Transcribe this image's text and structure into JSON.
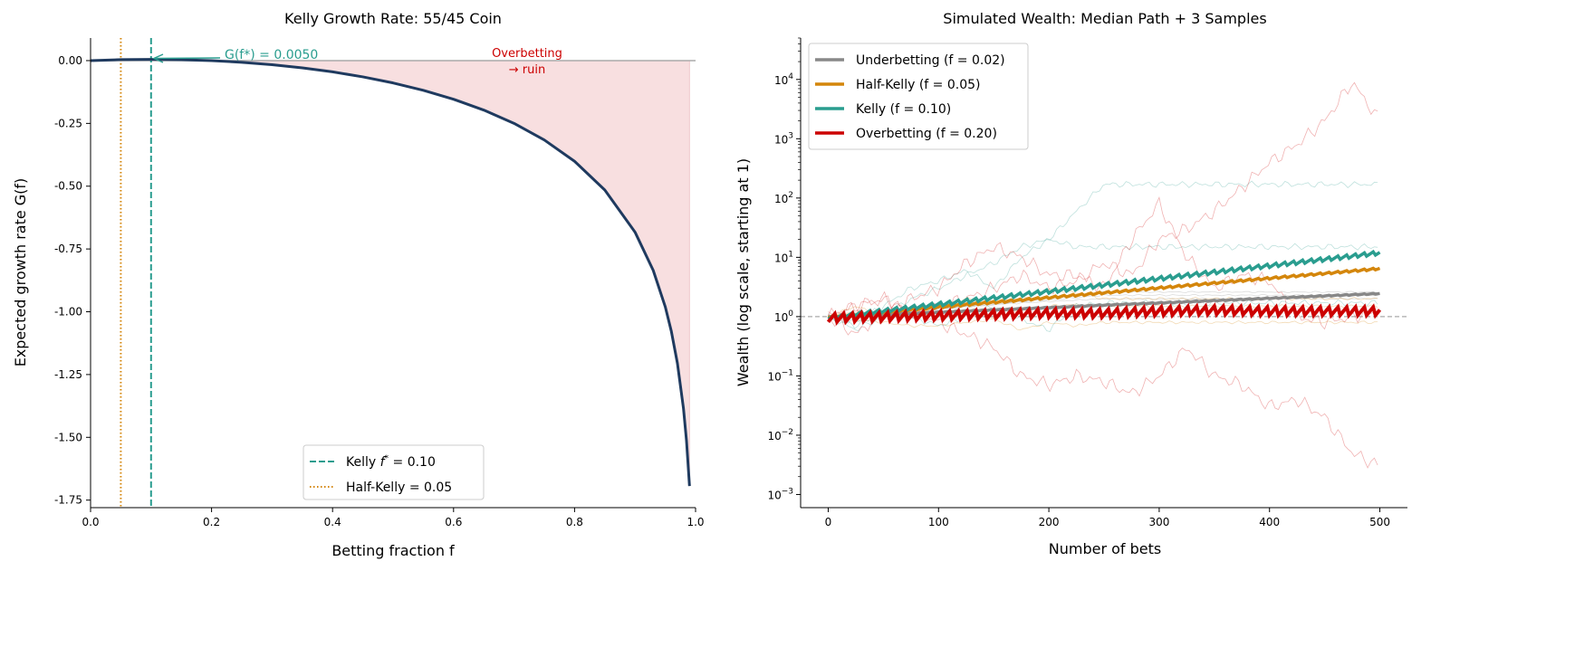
{
  "chart_data": [
    {
      "type": "line",
      "title": "Kelly Growth Rate: 55/45 Coin",
      "xlabel": "Betting fraction f",
      "ylabel": "Expected growth rate G(f)",
      "xlim": [
        0,
        1.0
      ],
      "ylim": [
        -1.78,
        0.09
      ],
      "xticks": [
        "0.0",
        "0.2",
        "0.4",
        "0.6",
        "0.8",
        "1.0"
      ],
      "xtick_values": [
        0,
        0.2,
        0.4,
        0.6,
        0.8,
        1.0
      ],
      "yticks": [
        "0.00",
        "-0.25",
        "-0.50",
        "-0.75",
        "-1.00",
        "-1.25",
        "-1.50",
        "-1.75"
      ],
      "ytick_values": [
        0,
        -0.25,
        -0.5,
        -0.75,
        -1.0,
        -1.25,
        -1.5,
        -1.75
      ],
      "grid": false,
      "curve": {
        "color": "#1f3a5f",
        "x": [
          0,
          0.05,
          0.1,
          0.15,
          0.2,
          0.25,
          0.3,
          0.35,
          0.4,
          0.45,
          0.5,
          0.55,
          0.6,
          0.65,
          0.7,
          0.75,
          0.8,
          0.85,
          0.9,
          0.93,
          0.95,
          0.96,
          0.97,
          0.98,
          0.985,
          0.99
        ],
        "y": [
          0,
          0.0038,
          0.005,
          0.0037,
          -0.0001,
          -0.0067,
          -0.0162,
          -0.0288,
          -0.0448,
          -0.0647,
          -0.0889,
          -0.1183,
          -0.1538,
          -0.197,
          -0.2499,
          -0.316,
          -0.401,
          -0.5154,
          -0.6831,
          -0.835,
          -0.9808,
          -1.0784,
          -1.205,
          -1.3847,
          -1.5128,
          -1.6939
        ]
      },
      "overbetting_fill": {
        "from_f": 0.1,
        "to_f": 0.99,
        "color": "#f8dfe0"
      },
      "zero_line_color": "#aaaaaa",
      "vlines": [
        {
          "label": "Kelly f* = 0.10",
          "label_main": "Kelly ",
          "label_sym": "f",
          "label_sup": "*",
          "label_rest": " = 0.10",
          "x": 0.1,
          "style": "dashed",
          "color": "#2a9d8f"
        },
        {
          "label": "Half-Kelly = 0.05",
          "x": 0.05,
          "style": "dotted",
          "color": "#d4860b"
        }
      ],
      "annotations": [
        {
          "text": "G(f*) = 0.0050",
          "x": 0.1,
          "y": 0.005,
          "color": "#2a9d8f"
        },
        {
          "text_line1": "Overbetting",
          "text_line2": "→ ruin",
          "color": "#cc0000"
        }
      ],
      "legend": "lower-center"
    },
    {
      "type": "line",
      "title": "Simulated Wealth: Median Path + 3 Samples",
      "xlabel": "Number of bets",
      "ylabel": "Wealth (log scale, starting at 1)",
      "xlim": [
        -25,
        525
      ],
      "ylim": [
        0.0006,
        50000
      ],
      "yscale": "log",
      "xticks": [
        "0",
        "100",
        "200",
        "300",
        "400",
        "500"
      ],
      "xtick_values": [
        0,
        100,
        200,
        300,
        400,
        500
      ],
      "ytick_exponents": [
        -3,
        -2,
        -1,
        0,
        1,
        2,
        3,
        4
      ],
      "grid": false,
      "reference_line": {
        "y": 1,
        "style": "dashed",
        "color": "#aaaaaa"
      },
      "legend": "upper-left",
      "series": [
        {
          "name": "Underbetting (f = 0.02)",
          "name_main": "Underbetting (",
          "f": "0.02",
          "color": "#888888",
          "median_x": [
            0,
            50,
            100,
            150,
            200,
            250,
            300,
            350,
            400,
            450,
            500
          ],
          "median": [
            1,
            1.09,
            1.2,
            1.31,
            1.43,
            1.57,
            1.71,
            1.87,
            2.05,
            2.25,
            2.46
          ],
          "samples": [
            [
              1,
              1.1,
              1.2,
              1.15,
              1.3,
              1.5,
              1.7,
              1.8,
              1.9,
              2.1,
              2.3
            ],
            [
              1,
              0.95,
              1.05,
              1.2,
              1.4,
              1.5,
              1.6,
              1.7,
              1.8,
              1.9,
              2.0
            ],
            [
              1,
              1.05,
              1.1,
              1.3,
              1.35,
              1.45,
              1.6,
              1.8,
              2.1,
              2.3,
              2.6
            ]
          ]
        },
        {
          "name": "Half-Kelly (f = 0.05)",
          "name_main": "Half-Kelly (",
          "f": "0.05",
          "color": "#d4860b",
          "median_x": [
            0,
            50,
            100,
            150,
            200,
            250,
            300,
            350,
            400,
            450,
            500
          ],
          "median": [
            1,
            1.21,
            1.46,
            1.76,
            2.12,
            2.55,
            3.08,
            3.72,
            4.49,
            5.41,
            6.53
          ],
          "samples": [
            [
              1,
              1.5,
              1,
              1.4,
              1.5,
              2,
              1.8,
              2,
              3,
              2.5,
              2
            ],
            [
              1,
              0.9,
              0.8,
              0.7,
              0.7,
              0.8,
              0.9,
              0.6,
              0.8,
              0.7,
              0.8
            ],
            [
              1,
              1.2,
              1.1,
              1.3,
              1.2,
              1.1,
              1,
              1.3,
              1.5,
              1.6,
              1.5
            ]
          ]
        },
        {
          "name": "Kelly (f = 0.10)",
          "name_main": "Kelly (",
          "f": "0.10",
          "color": "#2a9d8f",
          "median_x": [
            0,
            50,
            100,
            150,
            200,
            250,
            300,
            350,
            400,
            450,
            500
          ],
          "median": [
            1,
            1.28,
            1.65,
            2.12,
            2.72,
            3.49,
            4.48,
            5.75,
            7.39,
            9.49,
            12.18
          ],
          "samples": [
            [
              1,
              0.6,
              1,
              2,
              3,
              5,
              8,
              15,
              20,
              60,
              170
            ],
            [
              1,
              0.8,
              1.5,
              3,
              4,
              6,
              3,
              10,
              20,
              15,
              15
            ],
            [
              1,
              0.7,
              1.2,
              1,
              0.7,
              1,
              1.5,
              0.9,
              0.6,
              1.5,
              1.7
            ]
          ]
        },
        {
          "name": "Overbetting (f = 0.20)",
          "name_main": "Overbetting (",
          "f": "0.20",
          "color": "#cc0000",
          "median_x": [
            0,
            50,
            100,
            150,
            200,
            250,
            300,
            350,
            400,
            450,
            500
          ],
          "median": [
            1,
            1.05,
            1.1,
            1.15,
            1.2,
            1.2,
            1.3,
            1.35,
            1.3,
            1.3,
            1.3
          ],
          "samples": [
            [
              1,
              1.5,
              2,
              1,
              1.5,
              2,
              3,
              5,
              3,
              4,
              8,
              5,
              20,
              30,
              60,
              150,
              400,
              800,
              2000,
              9000,
              2000,
              400
            ],
            [
              1,
              0.5,
              1.2,
              2,
              3,
              8,
              15,
              10,
              5,
              5,
              3,
              20,
              80,
              10,
              3,
              5,
              4,
              1,
              0.8,
              1,
              1.2
            ],
            [
              1,
              1.5,
              2,
              1.2,
              0.8,
              0.5,
              0.3,
              0.1,
              0.07,
              0.1,
              0.08,
              0.05,
              0.1,
              0.3,
              0.1,
              0.07,
              0.03,
              0.04,
              0.02,
              0.005,
              0.003
            ]
          ]
        }
      ],
      "sample_x_step": 25
    }
  ]
}
